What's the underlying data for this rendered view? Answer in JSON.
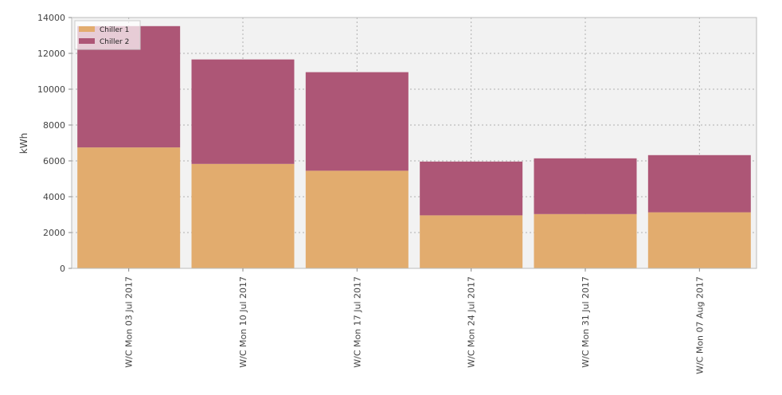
{
  "chart_data": {
    "type": "bar",
    "stacked": true,
    "title": "",
    "xlabel": "",
    "ylabel": "kWh",
    "categories": [
      "W/C Mon 03 Jul 2017",
      "W/C Mon 10 Jul 2017",
      "W/C Mon 17 Jul 2017",
      "W/C Mon 24 Jul 2017",
      "W/C Mon 31 Jul 2017",
      "W/C Mon 07 Aug 2017"
    ],
    "series": [
      {
        "name": "Chiller 1",
        "color": "#e2ac6e",
        "values": [
          6750,
          5830,
          5450,
          2960,
          3030,
          3130
        ]
      },
      {
        "name": "Chiller 2",
        "color": "#ad5676",
        "values": [
          6770,
          5830,
          5500,
          3000,
          3110,
          3190
        ]
      }
    ],
    "ylim": [
      0,
      14000
    ],
    "yticks": [
      0,
      2000,
      4000,
      6000,
      8000,
      10000,
      12000,
      14000
    ],
    "grid": true,
    "legend_position": "top-left",
    "plot_background": "#f2f2f2"
  }
}
